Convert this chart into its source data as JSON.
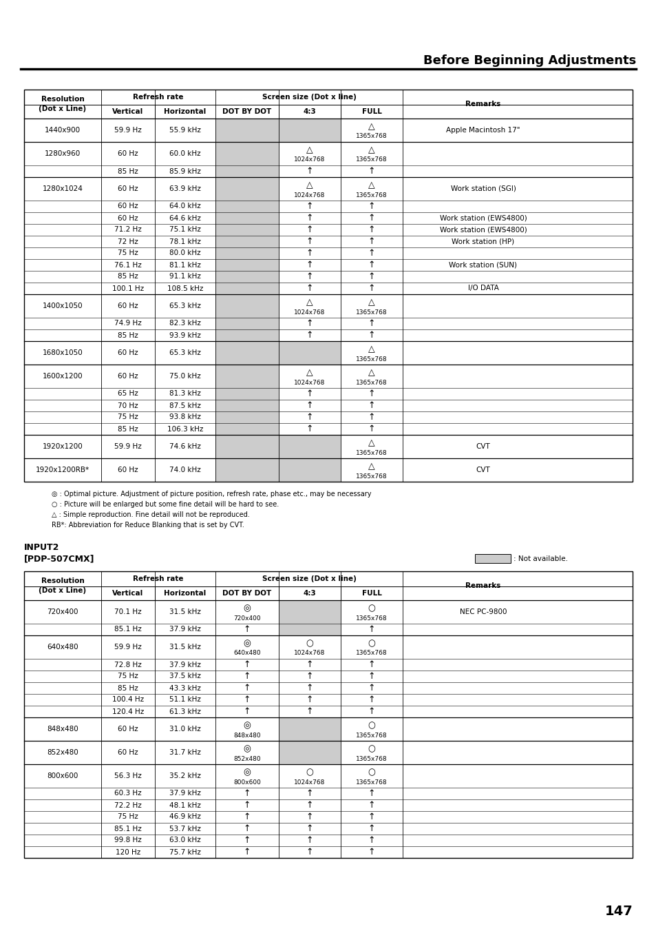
{
  "title": "Before Beginning Adjustments",
  "page_number": "147",
  "background_color": "#ffffff",
  "gray_color": "#cccccc",
  "top_table": {
    "rows": [
      {
        "res": "1440x900",
        "v": "59.9 Hz",
        "h": "55.9 kHz",
        "dbd": "",
        "r43": "",
        "full": "△\n1365x768",
        "rem": "Apple Macintosh 17\"",
        "dbd_gray": true,
        "r43_gray": true
      },
      {
        "res": "1280x960",
        "v": "60 Hz",
        "h": "60.0 kHz",
        "dbd": "",
        "r43": "△\n1024x768",
        "full": "△\n1365x768",
        "rem": "",
        "dbd_gray": true
      },
      {
        "res": "",
        "v": "85 Hz",
        "h": "85.9 kHz",
        "dbd": "",
        "r43": "↑",
        "full": "↑",
        "rem": "",
        "dbd_gray": true
      },
      {
        "res": "1280x1024",
        "v": "60 Hz",
        "h": "63.9 kHz",
        "dbd": "",
        "r43": "△\n1024x768",
        "full": "△\n1365x768",
        "rem": "Work station (SGI)",
        "dbd_gray": true
      },
      {
        "res": "",
        "v": "60 Hz",
        "h": "64.0 kHz",
        "dbd": "",
        "r43": "↑",
        "full": "↑",
        "rem": "",
        "dbd_gray": true
      },
      {
        "res": "",
        "v": "60 Hz",
        "h": "64.6 kHz",
        "dbd": "",
        "r43": "↑",
        "full": "↑",
        "rem": "Work station (EWS4800)",
        "dbd_gray": true
      },
      {
        "res": "",
        "v": "71.2 Hz",
        "h": "75.1 kHz",
        "dbd": "",
        "r43": "↑",
        "full": "↑",
        "rem": "Work station (EWS4800)",
        "dbd_gray": true
      },
      {
        "res": "",
        "v": "72 Hz",
        "h": "78.1 kHz",
        "dbd": "",
        "r43": "↑",
        "full": "↑",
        "rem": "Work station (HP)",
        "dbd_gray": true
      },
      {
        "res": "",
        "v": "75 Hz",
        "h": "80.0 kHz",
        "dbd": "",
        "r43": "↑",
        "full": "↑",
        "rem": "",
        "dbd_gray": true
      },
      {
        "res": "",
        "v": "76.1 Hz",
        "h": "81.1 kHz",
        "dbd": "",
        "r43": "↑",
        "full": "↑",
        "rem": "Work station (SUN)",
        "dbd_gray": true
      },
      {
        "res": "",
        "v": "85 Hz",
        "h": "91.1 kHz",
        "dbd": "",
        "r43": "↑",
        "full": "↑",
        "rem": "",
        "dbd_gray": true
      },
      {
        "res": "",
        "v": "100.1 Hz",
        "h": "108.5 kHz",
        "dbd": "",
        "r43": "↑",
        "full": "↑",
        "rem": "I/O DATA",
        "dbd_gray": true
      },
      {
        "res": "1400x1050",
        "v": "60 Hz",
        "h": "65.3 kHz",
        "dbd": "",
        "r43": "△\n1024x768",
        "full": "△\n1365x768",
        "rem": "",
        "dbd_gray": true
      },
      {
        "res": "",
        "v": "74.9 Hz",
        "h": "82.3 kHz",
        "dbd": "",
        "r43": "↑",
        "full": "↑",
        "rem": "",
        "dbd_gray": true
      },
      {
        "res": "",
        "v": "85 Hz",
        "h": "93.9 kHz",
        "dbd": "",
        "r43": "↑",
        "full": "↑",
        "rem": "",
        "dbd_gray": true
      },
      {
        "res": "1680x1050",
        "v": "60 Hz",
        "h": "65.3 kHz",
        "dbd": "",
        "r43": "",
        "full": "△\n1365x768",
        "rem": "",
        "dbd_gray": true,
        "r43_gray": true
      },
      {
        "res": "1600x1200",
        "v": "60 Hz",
        "h": "75.0 kHz",
        "dbd": "",
        "r43": "△\n1024x768",
        "full": "△\n1365x768",
        "rem": "",
        "dbd_gray": true
      },
      {
        "res": "",
        "v": "65 Hz",
        "h": "81.3 kHz",
        "dbd": "",
        "r43": "↑",
        "full": "↑",
        "rem": "",
        "dbd_gray": true
      },
      {
        "res": "",
        "v": "70 Hz",
        "h": "87.5 kHz",
        "dbd": "",
        "r43": "↑",
        "full": "↑",
        "rem": "",
        "dbd_gray": true
      },
      {
        "res": "",
        "v": "75 Hz",
        "h": "93.8 kHz",
        "dbd": "",
        "r43": "↑",
        "full": "↑",
        "rem": "",
        "dbd_gray": true
      },
      {
        "res": "",
        "v": "85 Hz",
        "h": "106.3 kHz",
        "dbd": "",
        "r43": "↑",
        "full": "↑",
        "rem": "",
        "dbd_gray": true
      },
      {
        "res": "1920x1200",
        "v": "59.9 Hz",
        "h": "74.6 kHz",
        "dbd": "",
        "r43": "",
        "full": "△\n1365x768",
        "rem": "CVT",
        "dbd_gray": true,
        "r43_gray": true
      },
      {
        "res": "1920x1200RB*",
        "v": "60 Hz",
        "h": "74.0 kHz",
        "dbd": "",
        "r43": "",
        "full": "△\n1365x768",
        "rem": "CVT",
        "dbd_gray": true,
        "r43_gray": true
      }
    ]
  },
  "legend_lines": [
    "◎ : Optimal picture. Adjustment of picture position, refresh rate, phase etc., may be necessary",
    "○ : Picture will be enlarged but some fine detail will be hard to see.",
    "△ : Simple reproduction. Fine detail will not be reproduced.",
    "RB*: Abbreviation for Reduce Blanking that is set by CVT."
  ],
  "input2_title": "INPUT2",
  "input2_model": "[PDP-507CMX]",
  "not_available_text": ": Not available.",
  "bottom_table": {
    "rows": [
      {
        "res": "720x400",
        "v": "70.1 Hz",
        "h": "31.5 kHz",
        "dbd": "◎\n720x400",
        "r43": "",
        "full": "○\n1365x768",
        "rem": "NEC PC-9800",
        "dbd_gray": false,
        "r43_gray": true
      },
      {
        "res": "",
        "v": "85.1 Hz",
        "h": "37.9 kHz",
        "dbd": "↑",
        "r43": "",
        "full": "↑",
        "rem": "",
        "dbd_gray": false,
        "r43_gray": true
      },
      {
        "res": "640x480",
        "v": "59.9 Hz",
        "h": "31.5 kHz",
        "dbd": "◎\n640x480",
        "r43": "○\n1024x768",
        "full": "○\n1365x768",
        "rem": "",
        "dbd_gray": false
      },
      {
        "res": "",
        "v": "72.8 Hz",
        "h": "37.9 kHz",
        "dbd": "↑",
        "r43": "↑",
        "full": "↑",
        "rem": "",
        "dbd_gray": false
      },
      {
        "res": "",
        "v": "75 Hz",
        "h": "37.5 kHz",
        "dbd": "↑",
        "r43": "↑",
        "full": "↑",
        "rem": "",
        "dbd_gray": false
      },
      {
        "res": "",
        "v": "85 Hz",
        "h": "43.3 kHz",
        "dbd": "↑",
        "r43": "↑",
        "full": "↑",
        "rem": "",
        "dbd_gray": false
      },
      {
        "res": "",
        "v": "100.4 Hz",
        "h": "51.1 kHz",
        "dbd": "↑",
        "r43": "↑",
        "full": "↑",
        "rem": "",
        "dbd_gray": false
      },
      {
        "res": "",
        "v": "120.4 Hz",
        "h": "61.3 kHz",
        "dbd": "↑",
        "r43": "↑",
        "full": "↑",
        "rem": "",
        "dbd_gray": false
      },
      {
        "res": "848x480",
        "v": "60 Hz",
        "h": "31.0 kHz",
        "dbd": "◎\n848x480",
        "r43": "",
        "full": "○\n1365x768",
        "rem": "",
        "dbd_gray": false,
        "r43_gray": true
      },
      {
        "res": "852x480",
        "v": "60 Hz",
        "h": "31.7 kHz",
        "dbd": "◎\n852x480",
        "r43": "",
        "full": "○\n1365x768",
        "rem": "",
        "dbd_gray": false,
        "r43_gray": true
      },
      {
        "res": "800x600",
        "v": "56.3 Hz",
        "h": "35.2 kHz",
        "dbd": "◎\n800x600",
        "r43": "○\n1024x768",
        "full": "○\n1365x768",
        "rem": "",
        "dbd_gray": false
      },
      {
        "res": "",
        "v": "60.3 Hz",
        "h": "37.9 kHz",
        "dbd": "↑",
        "r43": "↑",
        "full": "↑",
        "rem": "",
        "dbd_gray": false
      },
      {
        "res": "",
        "v": "72.2 Hz",
        "h": "48.1 kHz",
        "dbd": "↑",
        "r43": "↑",
        "full": "↑",
        "rem": "",
        "dbd_gray": false
      },
      {
        "res": "",
        "v": "75 Hz",
        "h": "46.9 kHz",
        "dbd": "↑",
        "r43": "↑",
        "full": "↑",
        "rem": "",
        "dbd_gray": false
      },
      {
        "res": "",
        "v": "85.1 Hz",
        "h": "53.7 kHz",
        "dbd": "↑",
        "r43": "↑",
        "full": "↑",
        "rem": "",
        "dbd_gray": false
      },
      {
        "res": "",
        "v": "99.8 Hz",
        "h": "63.0 kHz",
        "dbd": "↑",
        "r43": "↑",
        "full": "↑",
        "rem": "",
        "dbd_gray": false
      },
      {
        "res": "",
        "v": "120 Hz",
        "h": "75.7 kHz",
        "dbd": "↑",
        "r43": "↑",
        "full": "↑",
        "rem": "",
        "dbd_gray": false
      }
    ]
  }
}
